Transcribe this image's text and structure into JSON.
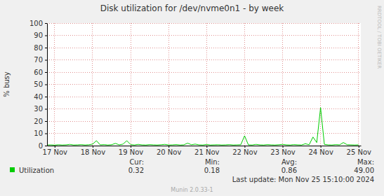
{
  "chart_data": {
    "type": "line",
    "title": "Disk utilization for /dev/nvme0n1 - by week",
    "y_label": "% busy",
    "watermark": "RRDTOOL / TOBI OETIKER",
    "x": [
      16.8,
      16.9,
      17.0,
      17.1,
      17.2,
      17.3,
      17.4,
      17.5,
      17.6,
      17.7,
      17.8,
      17.9,
      18.0,
      18.1,
      18.2,
      18.3,
      18.4,
      18.5,
      18.6,
      18.7,
      18.8,
      18.9,
      19.0,
      19.1,
      19.2,
      19.3,
      19.4,
      19.5,
      19.6,
      19.7,
      19.8,
      19.9,
      20.0,
      20.1,
      20.2,
      20.3,
      20.4,
      20.5,
      20.6,
      20.7,
      20.8,
      20.9,
      21.0,
      21.1,
      21.2,
      21.3,
      21.4,
      21.5,
      21.6,
      21.7,
      21.8,
      21.9,
      22.0,
      22.1,
      22.2,
      22.3,
      22.4,
      22.5,
      22.6,
      22.7,
      22.8,
      22.9,
      23.0,
      23.1,
      23.2,
      23.3,
      23.4,
      23.5,
      23.6,
      23.7,
      23.8,
      23.9,
      24.0,
      24.1,
      24.2,
      24.3,
      24.4,
      24.5,
      24.6,
      24.7,
      24.8,
      24.9,
      25.0
    ],
    "series": [
      {
        "name": "Utilization",
        "color": "#00cc00",
        "values": [
          0.5,
          0.6,
          0.4,
          0.7,
          0.5,
          0.6,
          1.0,
          0.5,
          0.6,
          0.8,
          0.5,
          0.7,
          1.2,
          4.0,
          0.6,
          0.8,
          0.5,
          0.7,
          1.8,
          0.6,
          1.2,
          4.0,
          0.8,
          0.5,
          1.0,
          0.6,
          0.5,
          0.8,
          0.6,
          0.5,
          0.7,
          1.0,
          0.5,
          0.6,
          0.8,
          0.5,
          0.6,
          2.0,
          0.7,
          1.2,
          0.6,
          0.5,
          0.9,
          0.5,
          0.6,
          0.7,
          0.5,
          0.6,
          0.8,
          0.5,
          0.6,
          0.7,
          8.0,
          0.6,
          0.5,
          1.0,
          0.6,
          0.5,
          0.8,
          0.6,
          0.5,
          0.7,
          1.0,
          0.6,
          0.5,
          0.8,
          0.6,
          0.5,
          1.5,
          0.7,
          7.0,
          2.5,
          31.0,
          1.0,
          0.6,
          0.5,
          0.8,
          0.6,
          2.5,
          0.7,
          0.6,
          0.5,
          0.6
        ]
      }
    ],
    "xlim": [
      16.8,
      25.06
    ],
    "ylim": [
      0,
      100
    ],
    "xticks": [
      {
        "value": 17,
        "label": "17 Nov"
      },
      {
        "value": 18,
        "label": "18 Nov"
      },
      {
        "value": 19,
        "label": "19 Nov"
      },
      {
        "value": 20,
        "label": "20 Nov"
      },
      {
        "value": 21,
        "label": "21 Nov"
      },
      {
        "value": 22,
        "label": "22 Nov"
      },
      {
        "value": 23,
        "label": "23 Nov"
      },
      {
        "value": 24,
        "label": "24 Nov"
      },
      {
        "value": 25,
        "label": "25 Nov"
      }
    ],
    "yticks": [
      0,
      10,
      20,
      30,
      40,
      50,
      60,
      70,
      80,
      90,
      100
    ],
    "grid": true,
    "stats": [
      {
        "label": "Cur:",
        "value": "0.32"
      },
      {
        "label": "Min:",
        "value": "0.18"
      },
      {
        "label": "Avg:",
        "value": "0.86"
      },
      {
        "label": "Max:",
        "value": "49.00"
      }
    ],
    "last_update": "Last update: Mon Nov 25 15:10:00 2024",
    "footer": "Munin 2.0.33-1"
  }
}
